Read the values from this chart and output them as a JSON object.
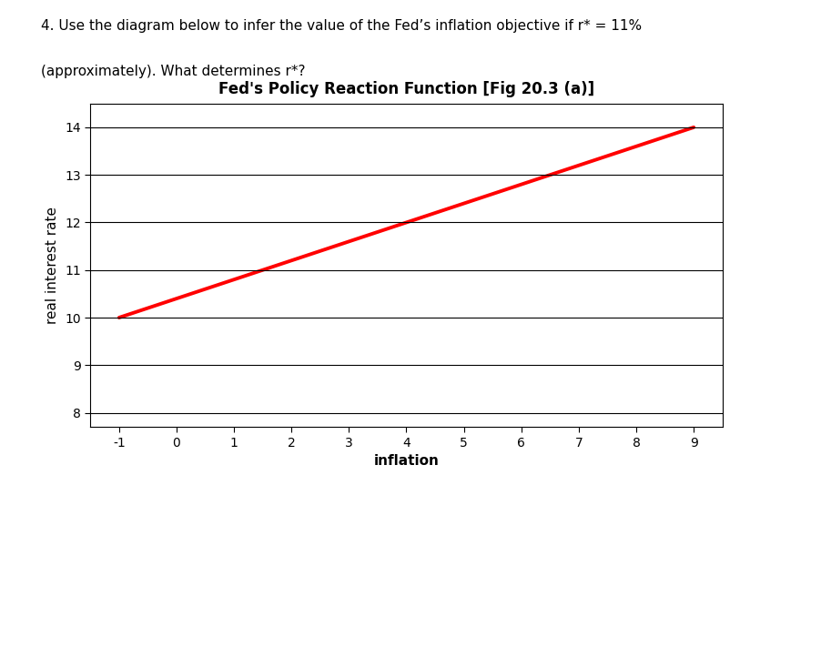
{
  "title": "Fed's Policy Reaction Function [Fig 20.3 (a)]",
  "question_text_line1": "4. Use the diagram below to infer the value of the Fed’s inflation objective if r* = 11%",
  "question_text_line2": "(approximately). What determines r*?",
  "xlabel": "inflation",
  "ylabel": "real interest rate",
  "xlim": [
    -1.5,
    9.5
  ],
  "ylim": [
    7.7,
    14.5
  ],
  "xticks": [
    -1,
    0,
    1,
    2,
    3,
    4,
    5,
    6,
    7,
    8,
    9
  ],
  "yticks": [
    8,
    9,
    10,
    11,
    12,
    13,
    14
  ],
  "line_x": [
    -1,
    9
  ],
  "line_y": [
    10.0,
    14.0
  ],
  "line_color": "#ff0000",
  "line_width": 2.8,
  "grid_color": "#000000",
  "background_color": "#ffffff",
  "title_fontsize": 12,
  "axis_label_fontsize": 11,
  "tick_fontsize": 10,
  "question_fontsize": 11
}
